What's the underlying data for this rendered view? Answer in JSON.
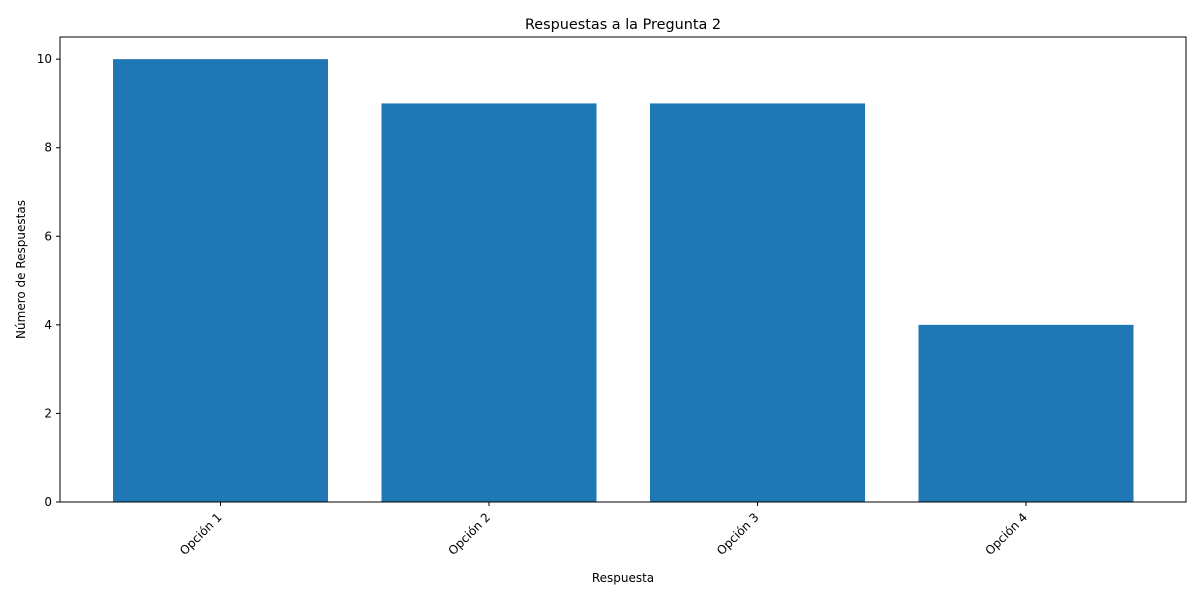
{
  "chart_data": {
    "type": "bar",
    "title": "Respuestas a la Pregunta 2",
    "xlabel": "Respuesta",
    "ylabel": "Número de Respuestas",
    "categories": [
      "Opción 1",
      "Opción 2",
      "Opción 3",
      "Opción 4"
    ],
    "values": [
      10,
      9,
      9,
      4
    ],
    "ylim": [
      0,
      10.5
    ],
    "yticks": [
      0,
      2,
      4,
      6,
      8,
      10
    ],
    "bar_color": "#1f77b4",
    "grid": false,
    "legend": "none"
  }
}
